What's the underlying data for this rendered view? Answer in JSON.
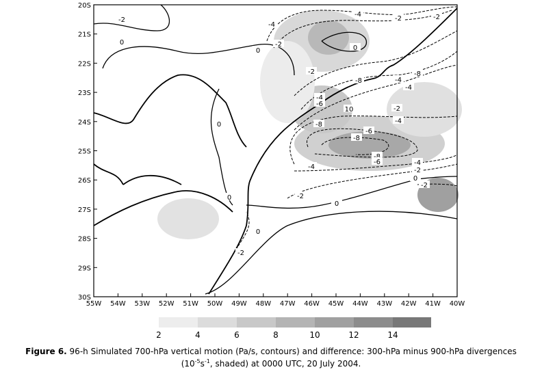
{
  "map": {
    "yticks": [
      "20S",
      "21S",
      "22S",
      "23S",
      "24S",
      "25S",
      "26S",
      "27S",
      "28S",
      "29S",
      "30S"
    ],
    "xticks": [
      "55W",
      "54W",
      "53W",
      "52W",
      "51W",
      "50W",
      "49W",
      "48W",
      "47W",
      "46W",
      "45W",
      "44W",
      "43W",
      "42W",
      "41W",
      "40W"
    ],
    "contour_labels": [
      "-2",
      "0",
      "0",
      "-2",
      "-4",
      "-4",
      "-2",
      "-2",
      "0",
      "-2",
      "-8",
      "-4",
      "-8",
      "-4",
      "-4",
      "-6",
      "-2",
      "10",
      "-8",
      "-4",
      "0",
      "-6",
      "-8",
      "-8",
      "-6",
      "-4",
      "-2",
      "0",
      "-2",
      "-4",
      "-2",
      "0",
      "0",
      "0",
      "-2"
    ]
  },
  "colorbar": {
    "labels": [
      "2",
      "4",
      "6",
      "8",
      "10",
      "12",
      "14"
    ]
  },
  "caption": {
    "label": "Figure 6.",
    "line1": " 96-h Simulated 700-hPa vertical motion (Pa/s, contours) and difference: 300-hPa minus 900-hPa divergences",
    "open": "(10",
    "exp1": "-5",
    "unit": "s",
    "exp2": "-1",
    "rest": ", shaded) at 0000 UTC, 20 July 2004."
  }
}
